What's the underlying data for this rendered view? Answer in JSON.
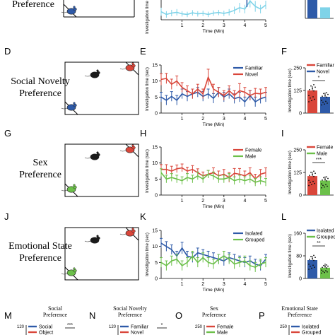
{
  "rows": [
    {
      "key": "social",
      "title": "Preference"
    },
    {
      "key": "novelty",
      "title_lines": [
        "Social Novelty",
        "Preference"
      ],
      "letters": [
        "D",
        "E",
        "F"
      ]
    },
    {
      "key": "sex",
      "title_lines": [
        "Sex",
        "Preference"
      ],
      "letters": [
        "G",
        "H",
        "I"
      ]
    },
    {
      "key": "emotion",
      "title_lines": [
        "Emotional State",
        "Preference"
      ],
      "letters": [
        "J",
        "K",
        "L"
      ]
    }
  ],
  "bottom_panels": [
    {
      "letter": "M",
      "title": "Social",
      "title2": "Preference",
      "ytick": "120",
      "legend": [
        "Social",
        "Object"
      ],
      "sig": "***"
    },
    {
      "letter": "N",
      "title": "Social Novelty",
      "title2": "Preference",
      "ytick": "120",
      "legend": [
        "Familiar",
        "Novel"
      ],
      "sig": "*"
    },
    {
      "letter": "O",
      "title": "Sex",
      "title2": "Preference",
      "ytick": "250",
      "legend": [
        "Female",
        "Male"
      ],
      "sig": ""
    },
    {
      "letter": "P",
      "title": "Emotional State",
      "title2": "Preference",
      "ytick": "250",
      "legend": [
        "Isolated",
        "Grouped"
      ],
      "sig": ""
    }
  ],
  "colors": {
    "blue": "#2e5aa8",
    "red": "#d9463a",
    "green": "#6cc04a",
    "lightblue": "#7fd3e8",
    "black": "#1a1a1a"
  },
  "chart_data": [
    {
      "panel": "top-line",
      "type": "line",
      "xlabel": "Time (Min)",
      "ylabel": "Investigation time (sec)",
      "x": [
        0.0,
        0.25,
        0.5,
        0.75,
        1.0,
        1.25,
        1.5,
        1.75,
        2.0,
        2.25,
        2.5,
        2.75,
        3.0,
        3.25,
        3.5,
        3.75,
        4.0,
        4.25,
        4.5,
        4.75,
        5.0
      ],
      "xticks": [
        "1",
        "2",
        "3",
        "4",
        "5"
      ],
      "ylim": [
        0,
        10
      ],
      "series": [
        {
          "color": "lightblue",
          "values": [
            3.0,
            2.0,
            2.5,
            2.8,
            2.2,
            2.0,
            2.6,
            2.2,
            2.4,
            2.0,
            2.5,
            2.7,
            2.4,
            2.8,
            3.5,
            4.5,
            4.0,
            7.0,
            5.0,
            4.0,
            5.5
          ],
          "err": [
            1.5,
            1.2,
            1.2,
            1.2,
            1.0,
            1.0,
            1.0,
            1.0,
            1.0,
            1.0,
            1.0,
            1.0,
            1.0,
            1.2,
            1.4,
            1.8,
            1.6,
            2.4,
            2.0,
            1.6,
            1.6
          ]
        }
      ]
    },
    {
      "panel": "top-bar",
      "type": "bar",
      "series": [
        {
          "color": "blue",
          "values": [
            150
          ]
        },
        {
          "color": "lightblue",
          "values": [
            90
          ]
        }
      ]
    },
    {
      "panel": "E",
      "type": "line",
      "xlabel": "Time (Min)",
      "ylabel": "Investigation time (sec)",
      "xticks": [
        "1",
        "2",
        "3",
        "4",
        "5"
      ],
      "ylim": [
        0,
        15
      ],
      "yticks": [
        0,
        5,
        10,
        15
      ],
      "legend": [
        "Familiar",
        "Novel"
      ],
      "x": [
        0.0,
        0.25,
        0.5,
        0.75,
        1.0,
        1.25,
        1.5,
        1.75,
        2.0,
        2.25,
        2.5,
        2.75,
        3.0,
        3.25,
        3.5,
        3.75,
        4.0,
        4.25,
        4.5,
        4.75,
        5.0
      ],
      "series": [
        {
          "name": "Familiar",
          "color": "blue",
          "values": [
            5.0,
            4.0,
            5.2,
            4.0,
            6.0,
            5.2,
            6.0,
            6.5,
            5.2,
            6.0,
            4.6,
            6.5,
            5.0,
            6.0,
            4.5,
            5.0,
            3.5,
            5.5,
            3.5,
            4.5,
            5.0
          ],
          "err": [
            1.5,
            1.5,
            1.5,
            1.5,
            1.5,
            1.5,
            1.5,
            1.5,
            1.5,
            1.5,
            1.5,
            1.5,
            1.5,
            1.5,
            1.5,
            1.5,
            1.5,
            1.5,
            1.5,
            1.5,
            1.5
          ]
        },
        {
          "name": "Novel",
          "color": "red",
          "values": [
            10.5,
            10.8,
            9.0,
            10.0,
            8.0,
            7.0,
            6.0,
            7.5,
            6.0,
            11.2,
            7.5,
            6.5,
            5.5,
            7.0,
            5.5,
            7.0,
            6.5,
            5.5,
            6.2,
            6.0,
            6.5
          ],
          "err": [
            1.8,
            1.6,
            1.6,
            1.6,
            1.5,
            1.5,
            1.5,
            1.5,
            1.5,
            2.5,
            1.5,
            1.5,
            1.5,
            1.5,
            1.5,
            2.2,
            1.5,
            1.5,
            1.5,
            1.5,
            1.5
          ]
        }
      ]
    },
    {
      "panel": "F",
      "type": "bar",
      "ylabel": "Investigation time (sec)",
      "ylim": [
        0,
        250
      ],
      "yticks": [
        0,
        125,
        250
      ],
      "legend": [
        "Familiar",
        "Novel"
      ],
      "significance": "*",
      "series": [
        {
          "name": "Familiar",
          "color": "red",
          "values": [
            125
          ]
        },
        {
          "name": "Novel",
          "color": "blue",
          "values": [
            90
          ]
        }
      ]
    },
    {
      "panel": "H",
      "type": "line",
      "xlabel": "Time (Min)",
      "ylabel": "Investigation time (sec)",
      "xticks": [
        "1",
        "2",
        "3",
        "4",
        "5"
      ],
      "ylim": [
        0,
        15
      ],
      "yticks": [
        0,
        5,
        10,
        15
      ],
      "legend": [
        "Female",
        "Male"
      ],
      "x": [
        0.0,
        0.25,
        0.5,
        0.75,
        1.0,
        1.25,
        1.5,
        1.75,
        2.0,
        2.25,
        2.5,
        2.75,
        3.0,
        3.25,
        3.5,
        3.75,
        4.0,
        4.25,
        4.5,
        4.75,
        5.0
      ],
      "series": [
        {
          "name": "Female",
          "color": "red",
          "values": [
            8.0,
            8.0,
            7.5,
            8.2,
            8.5,
            7.5,
            8.0,
            7.0,
            6.0,
            6.5,
            7.0,
            6.0,
            6.5,
            5.5,
            6.8,
            6.5,
            6.0,
            7.0,
            5.0,
            6.5,
            7.0
          ],
          "err": [
            1.5,
            1.5,
            1.5,
            1.2,
            1.2,
            1.2,
            1.2,
            1.2,
            1.2,
            1.2,
            1.5,
            1.5,
            1.5,
            1.5,
            1.5,
            1.8,
            1.5,
            1.5,
            1.5,
            1.5,
            1.5
          ]
        },
        {
          "name": "Male",
          "color": "green",
          "values": [
            7.0,
            5.0,
            5.5,
            5.0,
            4.5,
            5.5,
            5.0,
            6.0,
            5.0,
            6.5,
            6.0,
            5.0,
            5.0,
            5.5,
            4.5,
            5.0,
            4.5,
            5.0,
            4.0,
            4.5,
            4.0
          ],
          "err": [
            1.2,
            1.2,
            1.2,
            1.2,
            1.2,
            1.2,
            1.2,
            1.2,
            1.2,
            1.2,
            1.2,
            1.2,
            1.2,
            1.2,
            1.2,
            1.2,
            1.2,
            1.2,
            1.2,
            1.2,
            1.2
          ]
        }
      ]
    },
    {
      "panel": "I",
      "type": "bar",
      "ylabel": "Investigation time (sec)",
      "ylim": [
        0,
        250
      ],
      "yticks": [
        0,
        125,
        250
      ],
      "legend": [
        "Female",
        "Male"
      ],
      "significance": "***",
      "series": [
        {
          "name": "Female",
          "color": "red",
          "values": [
            105
          ]
        },
        {
          "name": "Male",
          "color": "green",
          "values": [
            80
          ]
        }
      ]
    },
    {
      "panel": "K",
      "type": "line",
      "xlabel": "Time (Min)",
      "ylabel": "Investigation time (sec)",
      "xticks": [
        "1",
        "2",
        "3",
        "4",
        "5"
      ],
      "ylim": [
        0,
        15
      ],
      "yticks": [
        0,
        5,
        10,
        15
      ],
      "legend": [
        "Isolated",
        "Grouped"
      ],
      "x": [
        0.0,
        0.25,
        0.5,
        0.75,
        1.0,
        1.25,
        1.5,
        1.75,
        2.0,
        2.25,
        2.5,
        2.75,
        3.0,
        3.25,
        3.5,
        3.75,
        4.0,
        4.25,
        4.5,
        4.75,
        5.0
      ],
      "series": [
        {
          "name": "Isolated",
          "color": "blue",
          "values": [
            11.0,
            10.0,
            9.0,
            7.0,
            9.5,
            7.0,
            6.5,
            8.0,
            7.5,
            7.0,
            6.5,
            6.0,
            5.5,
            6.5,
            6.0,
            5.5,
            5.0,
            5.5,
            4.5,
            4.0,
            6.0
          ],
          "err": [
            1.5,
            1.5,
            1.5,
            1.5,
            1.8,
            1.5,
            1.5,
            1.5,
            1.5,
            1.5,
            1.5,
            1.5,
            1.5,
            1.5,
            1.5,
            1.5,
            1.5,
            1.5,
            1.5,
            1.5,
            1.5
          ]
        },
        {
          "name": "Grouped",
          "color": "green",
          "values": [
            5.0,
            4.0,
            5.5,
            6.0,
            4.0,
            5.0,
            7.0,
            5.0,
            6.5,
            5.0,
            4.5,
            6.0,
            7.0,
            6.0,
            4.5,
            5.0,
            5.5,
            4.0,
            3.5,
            4.5,
            5.0
          ],
          "err": [
            1.5,
            1.5,
            1.5,
            1.5,
            1.5,
            1.5,
            1.5,
            1.5,
            1.5,
            1.5,
            1.5,
            1.5,
            1.5,
            1.5,
            1.5,
            1.5,
            1.5,
            1.5,
            1.5,
            1.5,
            1.5
          ]
        }
      ]
    },
    {
      "panel": "L",
      "type": "bar",
      "ylabel": "Investigation time (sec)",
      "ylim": [
        0,
        160
      ],
      "yticks": [
        0,
        80,
        160
      ],
      "legend": [
        "Isolated",
        "Grouped"
      ],
      "significance": "**",
      "series": [
        {
          "name": "Isolated",
          "color": "blue",
          "values": [
            65
          ]
        },
        {
          "name": "Grouped",
          "color": "green",
          "values": [
            38
          ]
        }
      ]
    }
  ]
}
